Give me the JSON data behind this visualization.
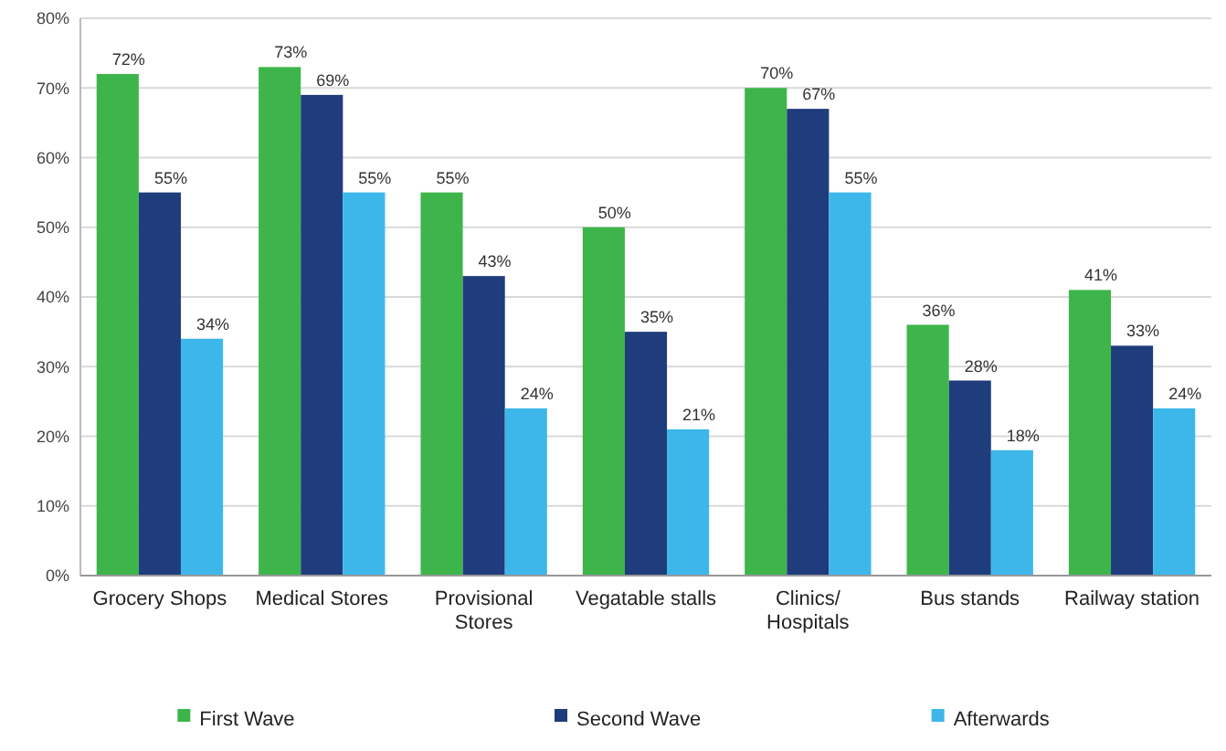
{
  "chart_data": {
    "type": "bar",
    "categories": [
      "Grocery Shops",
      "Medical Stores",
      "Provisional Stores",
      "Vegatable stalls",
      "Clinics/ Hospitals",
      "Bus stands",
      "Railway station"
    ],
    "series": [
      {
        "name": "First Wave",
        "color": "#3db54a",
        "values": [
          72,
          73,
          55,
          50,
          70,
          36,
          41
        ],
        "value_labels": [
          "72%",
          "73%",
          "55%",
          "50%",
          "70%",
          "36%",
          "41%"
        ]
      },
      {
        "name": "Second Wave",
        "color": "#1f3c7c",
        "values": [
          55,
          69,
          43,
          35,
          67,
          28,
          33
        ],
        "value_labels": [
          "55%",
          "69%",
          "43%",
          "35%",
          "67%",
          "28%",
          "33%"
        ]
      },
      {
        "name": "Afterwards",
        "color": "#3db7ea",
        "values": [
          34,
          55,
          24,
          21,
          55,
          18,
          24
        ],
        "value_labels": [
          "34%",
          "55%",
          "24%",
          "21%",
          "55%",
          "18%",
          "24%"
        ]
      }
    ],
    "ylim": [
      0,
      80
    ],
    "yticks": [
      {
        "value": 0,
        "label": "0%"
      },
      {
        "value": 10,
        "label": "10%"
      },
      {
        "value": 20,
        "label": "20%"
      },
      {
        "value": 30,
        "label": "30%"
      },
      {
        "value": 40,
        "label": "40%"
      },
      {
        "value": 50,
        "label": "50%"
      },
      {
        "value": 60,
        "label": "60%"
      },
      {
        "value": 70,
        "label": "70%"
      },
      {
        "value": 80,
        "label": "80%"
      }
    ],
    "grid": "y",
    "legend": "bottom"
  }
}
